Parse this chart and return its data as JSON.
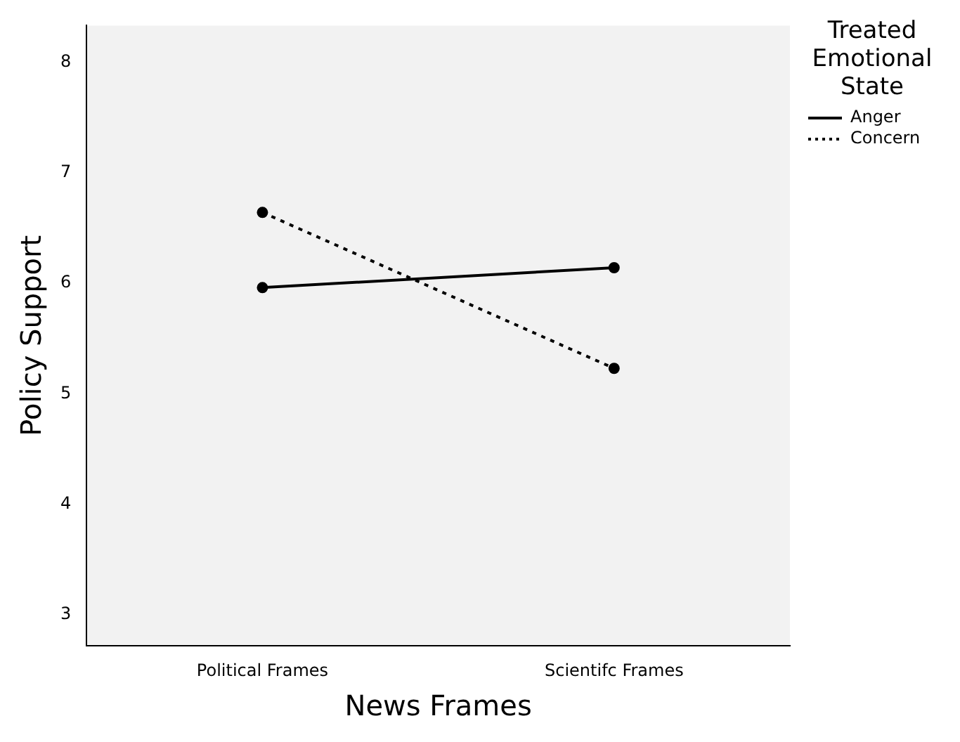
{
  "chart_data": {
    "type": "line",
    "xlabel": "News Frames",
    "ylabel": "Policy Support",
    "legend_title": "Treated Emotional State",
    "categories": [
      "Political Frames",
      "Scientifc Frames"
    ],
    "series": [
      {
        "name": "Anger",
        "color": "#000000",
        "values": [
          5.96,
          6.14
        ],
        "line_style": "solid"
      },
      {
        "name": "Concern",
        "color": "#000000",
        "values": [
          6.64,
          5.23
        ],
        "line_style": "dotted"
      }
    ],
    "ylim": [
      2.72,
      8.33
    ],
    "yticks": [
      3,
      4,
      5,
      6,
      7,
      8
    ],
    "grid": false,
    "legend": "top right",
    "marker": "circle"
  }
}
